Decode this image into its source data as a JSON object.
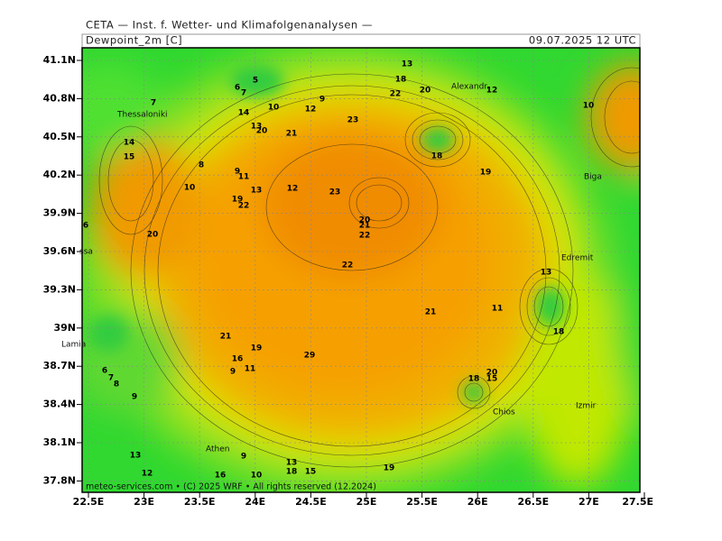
{
  "header": {
    "title": "CETA — Inst. f. Wetter- und Klimafolgenanalysen —",
    "field": "Dewpoint_2m [C]",
    "valid": "09.07.2025 12 UTC"
  },
  "map": {
    "lat_labels": [
      "41.1N",
      "40.8N",
      "40.5N",
      "40.2N",
      "39.9N",
      "39.6N",
      "39.3N",
      "39N",
      "38.7N",
      "38.4N",
      "38.1N",
      "37.8N"
    ],
    "lon_labels": [
      "22.5E",
      "23E",
      "23.5E",
      "24E",
      "24.5E",
      "25E",
      "25.5E",
      "26E",
      "26.5E",
      "27E",
      "27.5E"
    ],
    "cities": [
      "Thessaloniki",
      "Alexandr.",
      "Biga",
      "Edremit",
      "Lamia",
      "Athen",
      "Chios",
      "Izmir",
      "ssa"
    ],
    "contour_labels": [
      "5",
      "6",
      "7",
      "7",
      "9",
      "10",
      "12",
      "14",
      "13",
      "20",
      "21",
      "23",
      "22",
      "20",
      "12",
      "10",
      "13",
      "18",
      "14",
      "15",
      "8",
      "9",
      "11",
      "19",
      "10",
      "12",
      "23",
      "13",
      "19",
      "22",
      "20",
      "21",
      "22",
      "6",
      "20",
      "22",
      "21",
      "11",
      "13",
      "18",
      "21",
      "19",
      "16",
      "9",
      "11",
      "29",
      "6",
      "7",
      "8",
      "9",
      "20",
      "15",
      "18",
      "9",
      "13",
      "12",
      "16",
      "13",
      "18",
      "15",
      "19",
      "10",
      "18"
    ],
    "footer": "meteo-services.com • (C) 2025 WRF • All rights reserved (12.2024)"
  }
}
